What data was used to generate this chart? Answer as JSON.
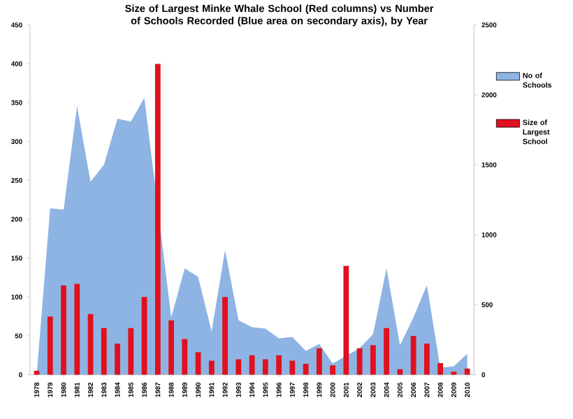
{
  "chart_data": {
    "type": "bar",
    "title": "Size of Largest Minke Whale School (Red columns) vs Number of Schools Recorded (Blue area on secondary axis), by Year",
    "categories": [
      "1978",
      "1979",
      "1980",
      "1981",
      "1982",
      "1983",
      "1984",
      "1985",
      "1986",
      "1987",
      "1988",
      "1989",
      "1990",
      "1991",
      "1992",
      "1993",
      "1994",
      "1995",
      "1996",
      "1997",
      "1998",
      "1999",
      "2000",
      "2001",
      "2002",
      "2003",
      "2004",
      "2005",
      "2006",
      "2007",
      "2008",
      "2009",
      "2010"
    ],
    "series": [
      {
        "name": "No of Schools",
        "type": "area",
        "axis": "y2",
        "color": "#8eb4e3",
        "values": [
          0,
          1190,
          1180,
          1920,
          1380,
          1500,
          1830,
          1810,
          1980,
          null,
          410,
          760,
          700,
          310,
          890,
          390,
          340,
          330,
          260,
          270,
          170,
          220,
          80,
          null,
          190,
          290,
          760,
          210,
          410,
          640,
          50,
          60,
          150
        ]
      },
      {
        "name": "Size of Largest School",
        "color": "#e0101e",
        "values": [
          5,
          75,
          115,
          117,
          78,
          60,
          40,
          60,
          100,
          400,
          70,
          46,
          29,
          18,
          100,
          20,
          25,
          20,
          25,
          18,
          14,
          34,
          12,
          140,
          34,
          38,
          60,
          7,
          50,
          40,
          15,
          4,
          8
        ]
      }
    ],
    "ylim": [
      0,
      450
    ],
    "yticks": [
      0,
      50,
      100,
      150,
      200,
      250,
      300,
      350,
      400,
      450
    ],
    "y2lim": [
      0,
      2500
    ],
    "y2ticks": [
      0,
      500,
      1000,
      1500,
      2000,
      2500
    ],
    "legend": "right",
    "grid": false
  }
}
